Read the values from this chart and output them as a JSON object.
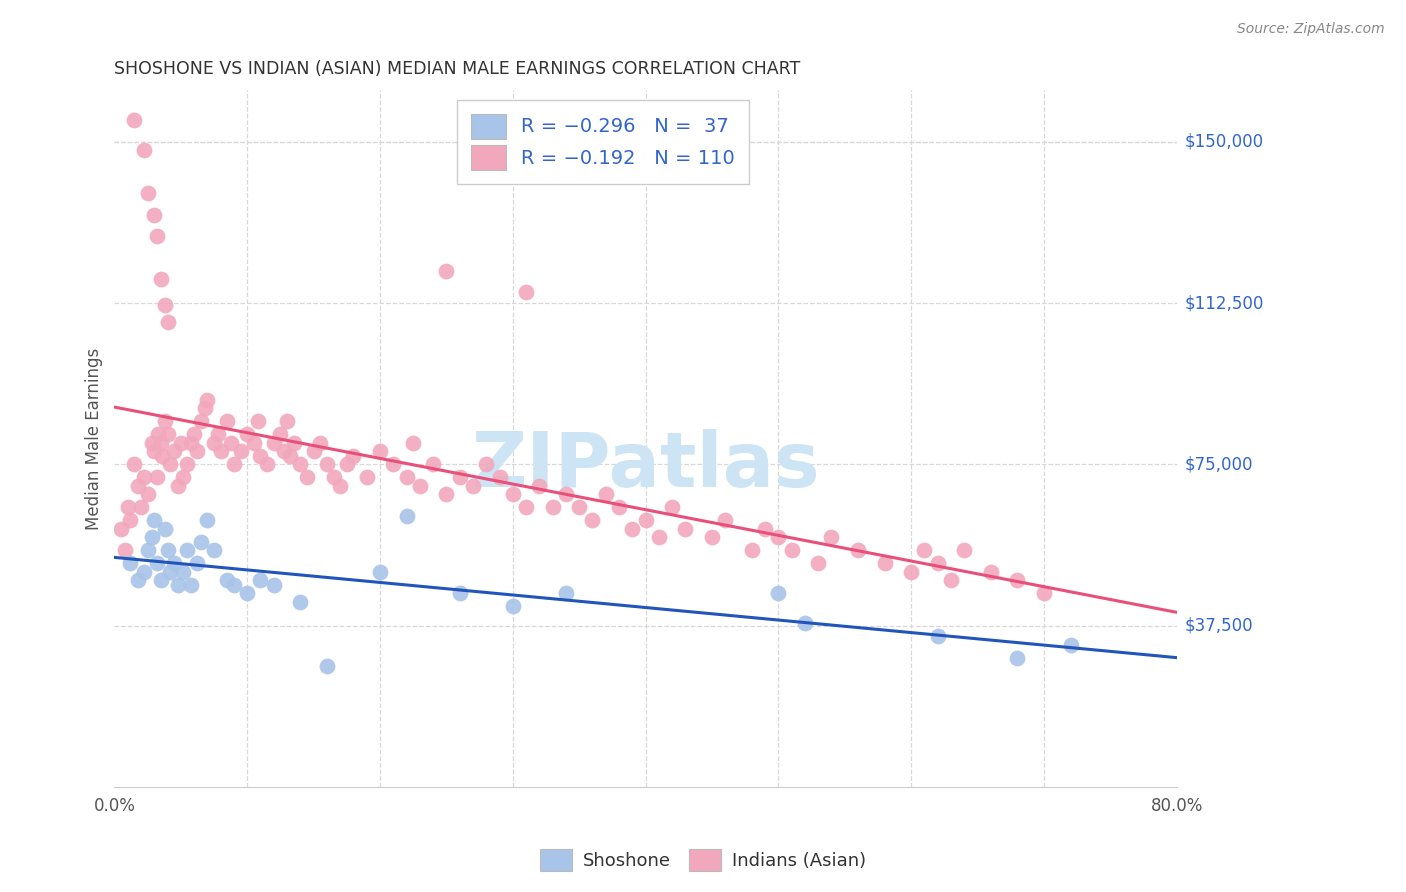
{
  "title": "SHOSHONE VS INDIAN (ASIAN) MEDIAN MALE EARNINGS CORRELATION CHART",
  "source": "Source: ZipAtlas.com",
  "ylabel": "Median Male Earnings",
  "xlim": [
    0.0,
    0.8
  ],
  "ylim": [
    0,
    162000
  ],
  "ytick_values": [
    37500,
    75000,
    112500,
    150000
  ],
  "ytick_labels": [
    "$37,500",
    "$75,000",
    "$112,500",
    "$150,000"
  ],
  "shoshone_color": "#a8c4e8",
  "indian_color": "#f2a8bc",
  "shoshone_line_color": "#2255bb",
  "indian_line_color": "#e8507a",
  "background_color": "#ffffff",
  "grid_color": "#d8d8d8",
  "right_label_color": "#3366cc",
  "watermark_color": "#cce4f4",
  "title_color": "#333333",
  "source_color": "#888888",
  "ylabel_color": "#555555",
  "xtick_color": "#555555",
  "shoshone_x": [
    0.012,
    0.018,
    0.022,
    0.025,
    0.028,
    0.03,
    0.032,
    0.035,
    0.038,
    0.04,
    0.042,
    0.045,
    0.048,
    0.052,
    0.055,
    0.058,
    0.062,
    0.065,
    0.07,
    0.075,
    0.085,
    0.09,
    0.1,
    0.11,
    0.12,
    0.14,
    0.16,
    0.2,
    0.22,
    0.26,
    0.3,
    0.34,
    0.5,
    0.52,
    0.62,
    0.68,
    0.72
  ],
  "shoshone_y": [
    52000,
    48000,
    50000,
    55000,
    58000,
    62000,
    52000,
    48000,
    60000,
    55000,
    50000,
    52000,
    47000,
    50000,
    55000,
    47000,
    52000,
    57000,
    62000,
    55000,
    48000,
    47000,
    45000,
    48000,
    47000,
    43000,
    28000,
    50000,
    63000,
    45000,
    42000,
    45000,
    45000,
    38000,
    35000,
    30000,
    33000
  ],
  "indian_x": [
    0.005,
    0.008,
    0.01,
    0.012,
    0.015,
    0.018,
    0.02,
    0.022,
    0.025,
    0.028,
    0.03,
    0.032,
    0.033,
    0.035,
    0.036,
    0.038,
    0.04,
    0.042,
    0.045,
    0.048,
    0.05,
    0.052,
    0.055,
    0.058,
    0.06,
    0.062,
    0.065,
    0.068,
    0.07,
    0.075,
    0.078,
    0.08,
    0.085,
    0.088,
    0.09,
    0.095,
    0.1,
    0.105,
    0.108,
    0.11,
    0.115,
    0.12,
    0.125,
    0.128,
    0.13,
    0.132,
    0.135,
    0.14,
    0.145,
    0.15,
    0.155,
    0.16,
    0.165,
    0.17,
    0.175,
    0.18,
    0.19,
    0.2,
    0.21,
    0.22,
    0.225,
    0.23,
    0.24,
    0.25,
    0.26,
    0.27,
    0.28,
    0.29,
    0.3,
    0.31,
    0.32,
    0.33,
    0.34,
    0.35,
    0.36,
    0.37,
    0.38,
    0.39,
    0.4,
    0.41,
    0.42,
    0.43,
    0.45,
    0.46,
    0.48,
    0.49,
    0.5,
    0.51,
    0.53,
    0.54,
    0.56,
    0.58,
    0.6,
    0.61,
    0.62,
    0.63,
    0.64,
    0.66,
    0.68,
    0.7,
    0.31,
    0.25,
    0.015,
    0.022,
    0.025,
    0.03,
    0.032,
    0.035,
    0.038,
    0.04
  ],
  "indian_y": [
    60000,
    55000,
    65000,
    62000,
    75000,
    70000,
    65000,
    72000,
    68000,
    80000,
    78000,
    72000,
    82000,
    80000,
    77000,
    85000,
    82000,
    75000,
    78000,
    70000,
    80000,
    72000,
    75000,
    80000,
    82000,
    78000,
    85000,
    88000,
    90000,
    80000,
    82000,
    78000,
    85000,
    80000,
    75000,
    78000,
    82000,
    80000,
    85000,
    77000,
    75000,
    80000,
    82000,
    78000,
    85000,
    77000,
    80000,
    75000,
    72000,
    78000,
    80000,
    75000,
    72000,
    70000,
    75000,
    77000,
    72000,
    78000,
    75000,
    72000,
    80000,
    70000,
    75000,
    68000,
    72000,
    70000,
    75000,
    72000,
    68000,
    65000,
    70000,
    65000,
    68000,
    65000,
    62000,
    68000,
    65000,
    60000,
    62000,
    58000,
    65000,
    60000,
    58000,
    62000,
    55000,
    60000,
    58000,
    55000,
    52000,
    58000,
    55000,
    52000,
    50000,
    55000,
    52000,
    48000,
    55000,
    50000,
    48000,
    45000,
    115000,
    120000,
    155000,
    148000,
    138000,
    133000,
    128000,
    118000,
    112000,
    108000
  ]
}
